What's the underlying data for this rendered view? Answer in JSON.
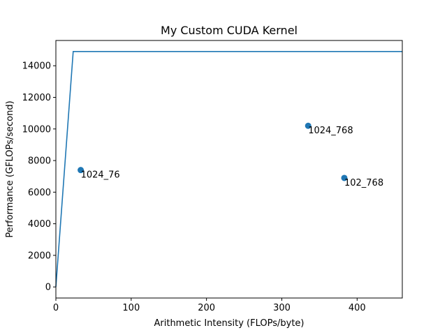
{
  "chart_data": {
    "type": "line",
    "title": "My Custom CUDA Kernel",
    "xlabel": "Arithmetic Intensity (FLOPs/byte)",
    "ylabel": "Performance (GFLOPs/second)",
    "xlim": [
      0,
      460
    ],
    "ylim": [
      -700,
      15600
    ],
    "x_ticks": [
      0,
      100,
      200,
      300,
      400
    ],
    "y_ticks": [
      0,
      2000,
      4000,
      6000,
      8000,
      10000,
      12000,
      14000
    ],
    "grid": false,
    "roofline": {
      "x": [
        0,
        23,
        460
      ],
      "y": [
        0,
        14900,
        14900
      ]
    },
    "points": [
      {
        "label": "1024_76",
        "x": 33,
        "y": 7400
      },
      {
        "label": "1024_768",
        "x": 335,
        "y": 10200
      },
      {
        "label": "102_768",
        "x": 383,
        "y": 6900
      }
    ],
    "colors": {
      "series": "#1f77b4"
    }
  }
}
